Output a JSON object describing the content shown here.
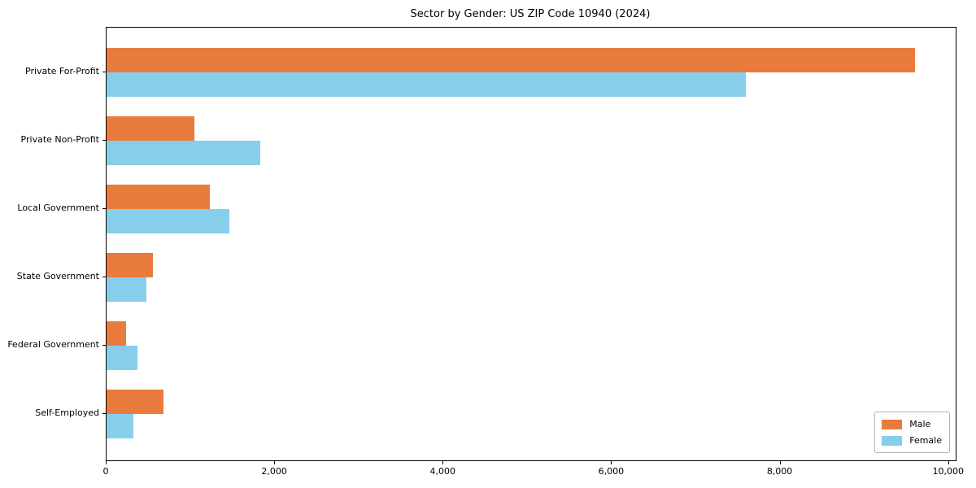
{
  "chart_data": {
    "type": "bar",
    "orientation": "horizontal",
    "title": "Sector by Gender: US ZIP Code 10940 (2024)",
    "categories": [
      "Private For-Profit",
      "Private Non-Profit",
      "Local Government",
      "State Government",
      "Federal Government",
      "Self-Employed"
    ],
    "series": [
      {
        "name": "Male",
        "color": "#e97b3d",
        "values": [
          9600,
          1040,
          1230,
          550,
          230,
          680
        ]
      },
      {
        "name": "Female",
        "color": "#87ceeb",
        "values": [
          7590,
          1825,
          1455,
          470,
          365,
          315
        ]
      }
    ],
    "xlabel": "",
    "ylabel": "",
    "xlim": [
      0,
      10080
    ],
    "x_ticks": [
      0,
      2000,
      4000,
      6000,
      8000,
      10000
    ],
    "x_tick_labels": [
      "0",
      "2,000",
      "4,000",
      "6,000",
      "8,000",
      "10,000"
    ],
    "grid": false,
    "legend_position": "lower right",
    "plot_background": "#ffffff",
    "spine_color": "#000000"
  }
}
